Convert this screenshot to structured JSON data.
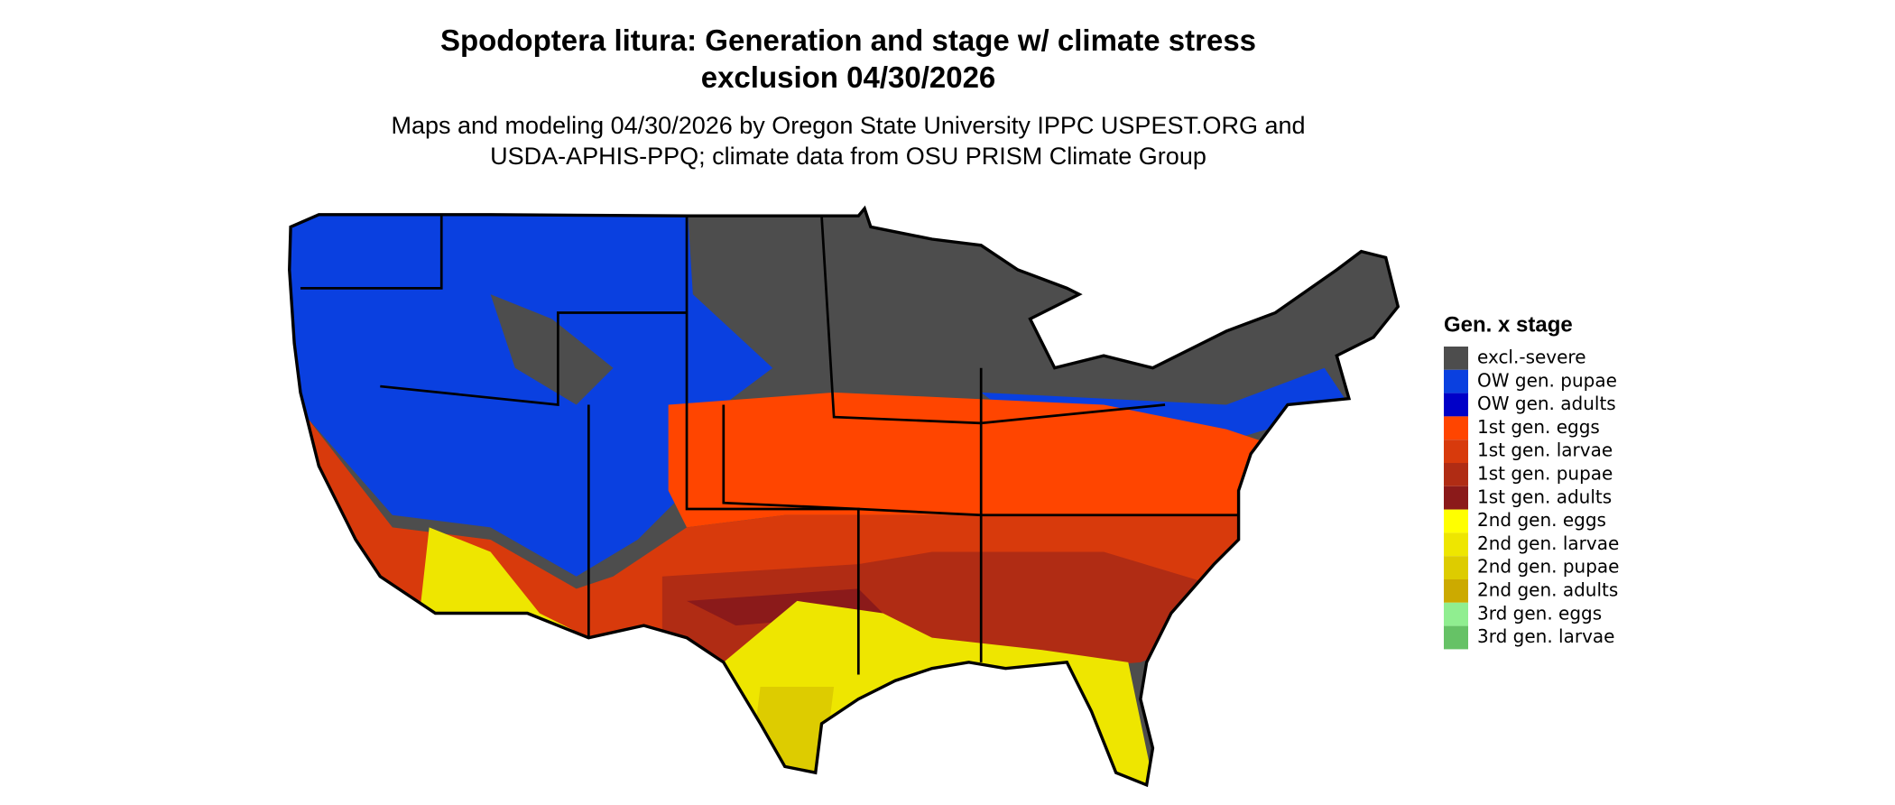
{
  "title": [
    "Spodoptera litura: Generation and stage w/ climate stress",
    "exclusion 04/30/2026"
  ],
  "subtitle": [
    "Maps and modeling 04/30/2026 by Oregon State University IPPC USPEST.ORG and",
    "USDA-APHIS-PPQ; climate data from OSU PRISM Climate Group"
  ],
  "legend": {
    "title": "Gen. x stage",
    "items": [
      {
        "label": "excl.-severe",
        "color": "#4d4d4d"
      },
      {
        "label": "OW gen. pupae",
        "color": "#0a40e0"
      },
      {
        "label": "OW gen. adults",
        "color": "#0000c8"
      },
      {
        "label": "1st gen. eggs",
        "color": "#ff4500"
      },
      {
        "label": "1st gen. larvae",
        "color": "#d83a0c"
      },
      {
        "label": "1st gen. pupae",
        "color": "#b02c14"
      },
      {
        "label": "1st gen. adults",
        "color": "#8b1a1a"
      },
      {
        "label": "2nd gen. eggs",
        "color": "#ffff00"
      },
      {
        "label": "2nd gen. larvae",
        "color": "#eee600"
      },
      {
        "label": "2nd gen. pupae",
        "color": "#ddcc00"
      },
      {
        "label": "2nd gen. adults",
        "color": "#ccaa00"
      },
      {
        "label": "3rd gen. eggs",
        "color": "#90ee90"
      },
      {
        "label": "3rd gen. larvae",
        "color": "#66c266"
      }
    ]
  }
}
